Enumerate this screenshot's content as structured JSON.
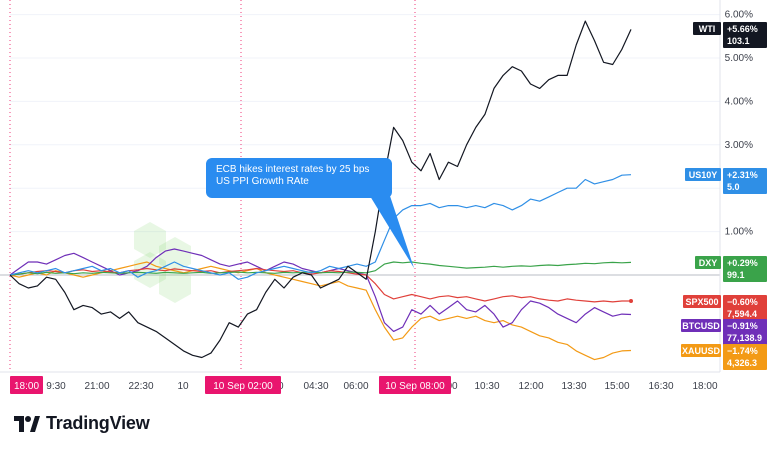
{
  "chart_data": {
    "type": "line",
    "title": "",
    "xlabel": "",
    "ylabel": "",
    "ylim": [
      -2.5,
      6.2
    ],
    "ytick_labels": [
      "6.00%",
      "5.00%",
      "4.00%",
      "3.00%",
      "2.00%",
      "1.00%"
    ],
    "yticks": [
      6,
      5,
      4,
      3,
      2,
      1
    ],
    "xtick_labels": [
      "9:30",
      "21:00",
      "22:30",
      "10",
      "00",
      "04:30",
      "06:00",
      "00",
      "10:30",
      "12:00",
      "13:30",
      "15:00",
      "16:30",
      "18:00"
    ],
    "session_tags": [
      "18:00",
      "10 Sep  02:00",
      "10 Sep  08:00"
    ],
    "annotation": {
      "lines": [
        "ECB hikes interest rates by 25 bps",
        "US PPI Growth RAte"
      ]
    },
    "series": [
      {
        "name": "WTI",
        "pct_label": "+5.66%",
        "price_label": "103.1",
        "color": "#131722",
        "values": [
          0,
          -0.2,
          -0.3,
          -0.25,
          -0.05,
          -0.1,
          -0.4,
          -0.8,
          -0.7,
          -0.75,
          -0.9,
          -0.85,
          -1.0,
          -0.85,
          -1.1,
          -1.2,
          -1.3,
          -1.45,
          -1.6,
          -1.75,
          -1.85,
          -1.9,
          -1.8,
          -1.5,
          -1.1,
          -1.2,
          -0.9,
          -0.8,
          -0.4,
          -0.1,
          -0.3,
          -0.05,
          0.05,
          0.0,
          -0.3,
          -0.2,
          -0.1,
          0.2,
          0.05,
          -0.1,
          1.0,
          2.3,
          3.4,
          3.1,
          2.6,
          2.4,
          2.8,
          2.2,
          2.6,
          2.5,
          3.0,
          3.4,
          3.7,
          4.3,
          4.6,
          4.8,
          4.7,
          4.4,
          4.3,
          4.5,
          4.6,
          4.6,
          5.3,
          5.85,
          5.4,
          4.9,
          4.85,
          5.2,
          5.66
        ]
      },
      {
        "name": "US10Y",
        "pct_label": "+2.31%",
        "price_label": "5.0",
        "color": "#2f8fe6",
        "values": [
          0,
          0.05,
          0.1,
          0.05,
          0.1,
          0.15,
          0.05,
          0.1,
          0.15,
          0.2,
          0.1,
          0.15,
          0.05,
          0.1,
          -0.05,
          0.05,
          0.1,
          0.2,
          0.3,
          0.2,
          0.15,
          0.1,
          0.05,
          0.0,
          0.05,
          -0.1,
          -0.05,
          0.05,
          0.1,
          0.15,
          0.2,
          0.15,
          0.1,
          0.05,
          0.1,
          0.2,
          0.15,
          0.2,
          0.25,
          0.2,
          0.3,
          0.8,
          1.3,
          1.5,
          1.6,
          1.6,
          1.65,
          1.55,
          1.6,
          1.6,
          1.55,
          1.6,
          1.55,
          1.65,
          1.6,
          1.5,
          1.6,
          1.75,
          1.7,
          1.8,
          1.9,
          2.0,
          2.0,
          2.2,
          2.1,
          2.15,
          2.2,
          2.3,
          2.31
        ]
      },
      {
        "name": "DXY",
        "pct_label": "+0.29%",
        "price_label": "99.1",
        "color": "#3aa34a",
        "values": [
          0,
          0.02,
          0.05,
          0.03,
          0.06,
          0.04,
          0.05,
          0.03,
          0.05,
          0.04,
          0.06,
          0.05,
          0.04,
          0.05,
          0.06,
          0.05,
          0.04,
          0.06,
          0.05,
          0.04,
          0.05,
          0.06,
          0.04,
          0.05,
          0.06,
          0.07,
          0.05,
          0.06,
          0.05,
          0.04,
          0.06,
          0.05,
          0.06,
          0.07,
          0.05,
          0.06,
          0.05,
          0.07,
          0.06,
          0.05,
          0.1,
          0.25,
          0.3,
          0.28,
          0.3,
          0.27,
          0.25,
          0.22,
          0.2,
          0.18,
          0.16,
          0.17,
          0.18,
          0.2,
          0.18,
          0.2,
          0.21,
          0.2,
          0.22,
          0.23,
          0.22,
          0.24,
          0.25,
          0.27,
          0.26,
          0.28,
          0.29,
          0.28,
          0.29
        ]
      },
      {
        "name": "SPX500",
        "pct_label": "−0.60%",
        "price_label": "7,594.4",
        "color": "#e0403a",
        "values": [
          0,
          0.02,
          0.05,
          0.08,
          0.1,
          0.08,
          0.05,
          0.1,
          0.12,
          0.08,
          0.1,
          0.07,
          0.05,
          0.1,
          0.12,
          0.15,
          0.12,
          0.1,
          0.14,
          0.12,
          0.1,
          0.08,
          0.1,
          0.05,
          0.08,
          0.1,
          0.12,
          0.15,
          0.12,
          0.1,
          0.08,
          0.1,
          0.05,
          0.02,
          0.05,
          0.1,
          0.08,
          0.05,
          0.02,
          0.0,
          -0.2,
          -0.45,
          -0.55,
          -0.5,
          -0.45,
          -0.5,
          -0.55,
          -0.5,
          -0.48,
          -0.52,
          -0.5,
          -0.55,
          -0.6,
          -0.55,
          -0.5,
          -0.48,
          -0.52,
          -0.5,
          -0.55,
          -0.58,
          -0.6,
          -0.55,
          -0.58,
          -0.6,
          -0.62,
          -0.6,
          -0.62,
          -0.6,
          -0.6
        ]
      },
      {
        "name": "BTCUSD",
        "pct_label": "−0.91%",
        "price_label": "77,138.9",
        "color": "#6f2fb8",
        "values": [
          0,
          0.15,
          0.3,
          0.3,
          0.25,
          0.35,
          0.45,
          0.5,
          0.4,
          0.3,
          0.2,
          0.1,
          0.0,
          0.05,
          0.1,
          0.2,
          0.4,
          0.55,
          0.6,
          0.55,
          0.5,
          0.45,
          0.35,
          0.25,
          0.2,
          0.25,
          0.3,
          0.2,
          0.1,
          0.2,
          0.3,
          0.25,
          0.15,
          0.1,
          0.05,
          0.1,
          0.15,
          0.1,
          0.05,
          0.0,
          -0.5,
          -1.1,
          -1.3,
          -1.2,
          -0.8,
          -0.9,
          -0.7,
          -0.9,
          -0.75,
          -0.6,
          -0.8,
          -0.85,
          -0.7,
          -0.9,
          -1.2,
          -1.1,
          -0.8,
          -0.6,
          -0.65,
          -0.75,
          -0.9,
          -1.0,
          -1.1,
          -0.9,
          -0.75,
          -0.85,
          -0.95,
          -0.9,
          -0.91
        ]
      },
      {
        "name": "XAUUSD",
        "pct_label": "−1.74%",
        "price_label": "4,326.3",
        "color": "#f39a15",
        "values": [
          0,
          -0.05,
          0.0,
          0.05,
          0.0,
          0.1,
          0.05,
          0.0,
          -0.05,
          0.0,
          0.05,
          0.1,
          0.15,
          0.2,
          0.25,
          0.3,
          0.2,
          0.15,
          0.1,
          0.05,
          0.1,
          0.15,
          0.2,
          0.15,
          0.1,
          0.05,
          0.1,
          0.15,
          0.05,
          0.0,
          -0.05,
          -0.1,
          -0.15,
          -0.2,
          -0.25,
          -0.2,
          -0.15,
          -0.25,
          -0.3,
          -0.35,
          -0.8,
          -1.2,
          -1.5,
          -1.45,
          -1.2,
          -1.0,
          -0.95,
          -1.05,
          -1.0,
          -0.95,
          -1.0,
          -0.95,
          -1.05,
          -1.1,
          -1.05,
          -1.15,
          -1.2,
          -1.3,
          -1.4,
          -1.45,
          -1.55,
          -1.6,
          -1.75,
          -1.85,
          -1.95,
          -1.9,
          -1.8,
          -1.75,
          -1.74
        ]
      }
    ]
  },
  "footer": {
    "brand": "TradingView"
  }
}
